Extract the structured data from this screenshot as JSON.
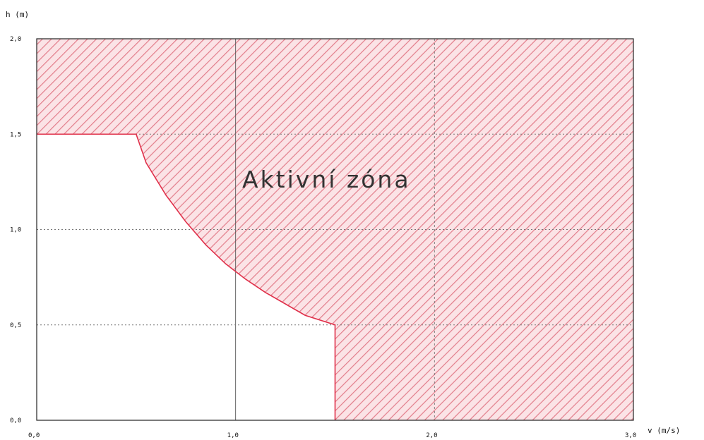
{
  "chart_data": {
    "type": "area",
    "xlabel": "v (m/s)",
    "ylabel": "h (m)",
    "xlim": [
      0,
      3
    ],
    "ylim": [
      0,
      2
    ],
    "x_ticks": [
      0,
      1,
      2,
      3
    ],
    "y_ticks": [
      0,
      0.5,
      1,
      1.5,
      2
    ],
    "x_tick_labels": [
      "0,0",
      "1,0",
      "2,0",
      "3,0"
    ],
    "y_tick_labels": [
      "0,0",
      "0,5",
      "1,0",
      "1,5",
      "2,0"
    ],
    "grid": true,
    "region": {
      "name": "Aktivní zóna",
      "fill": "hatched",
      "color": "#e0304a",
      "boundary": [
        {
          "x": 0.0,
          "y": 1.5
        },
        {
          "x": 0.5,
          "y": 1.5
        },
        {
          "x": 0.55,
          "y": 1.35
        },
        {
          "x": 0.65,
          "y": 1.18
        },
        {
          "x": 0.75,
          "y": 1.04
        },
        {
          "x": 0.85,
          "y": 0.92
        },
        {
          "x": 0.95,
          "y": 0.82
        },
        {
          "x": 1.05,
          "y": 0.74
        },
        {
          "x": 1.15,
          "y": 0.67
        },
        {
          "x": 1.25,
          "y": 0.61
        },
        {
          "x": 1.35,
          "y": 0.55
        },
        {
          "x": 1.5,
          "y": 0.5
        },
        {
          "x": 1.5,
          "y": 0.0
        }
      ]
    }
  }
}
